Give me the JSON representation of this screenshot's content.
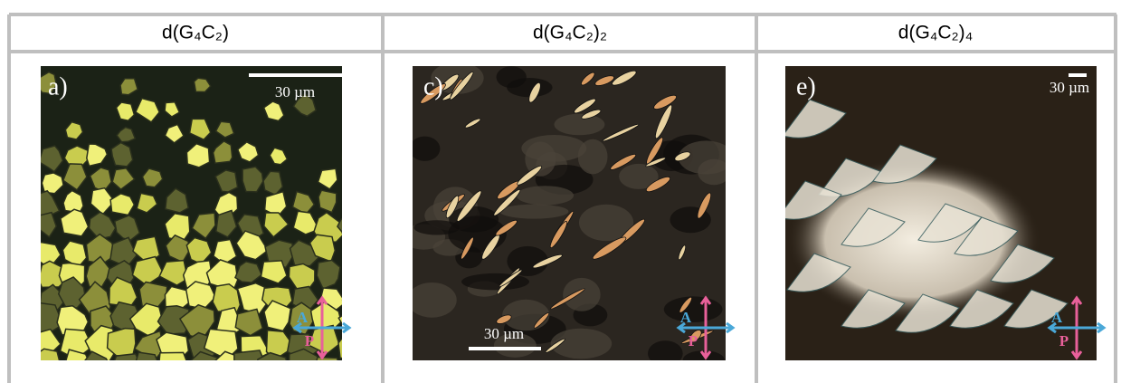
{
  "header": {
    "columns": [
      "d(G₄C₂)",
      "d(G₄C₂)₂",
      "d(G₄C₂)₄"
    ]
  },
  "panels": [
    {
      "label": "a)",
      "scale_bar": "30 µm",
      "analyzer": "A",
      "polarizer": "P"
    },
    {
      "label": "c)",
      "scale_bar": "30 µm",
      "analyzer": "A",
      "polarizer": "P"
    },
    {
      "label": "e)",
      "scale_bar": "30 µm",
      "analyzer": "A",
      "polarizer": "P"
    }
  ]
}
